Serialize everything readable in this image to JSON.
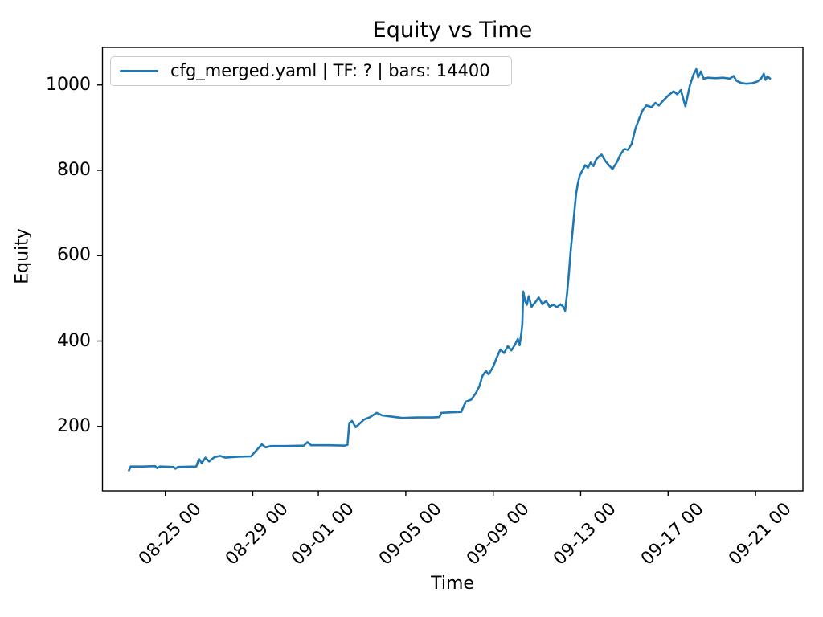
{
  "chart_data": {
    "type": "line",
    "title": "Equity vs Time",
    "xlabel": "Time",
    "ylabel": "Equity",
    "grid": false,
    "legend_position": "upper left",
    "line_color": "#1f77b4",
    "frame_color": "#000000",
    "x_tick_labels": [
      "08-25 00",
      "08-29 00",
      "09-01 00",
      "09-05 00",
      "09-09 00",
      "09-13 00",
      "09-17 00",
      "09-21 00"
    ],
    "y_ticks": [
      200,
      400,
      600,
      800,
      1000
    ],
    "xlim": [
      "08-22 03",
      "09-23 04"
    ],
    "ylim": [
      49,
      1088
    ],
    "series": [
      {
        "name": "cfg_merged.yaml | TF: ? | bars: 14400",
        "x": [
          "08-23 08",
          "08-23 10",
          "08-24 00",
          "08-24 13",
          "08-24 15",
          "08-24 18",
          "08-25 09",
          "08-25 11",
          "08-25 14",
          "08-26 10",
          "08-26 13",
          "08-26 16",
          "08-26 20",
          "08-27 00",
          "08-27 06",
          "08-27 12",
          "08-27 18",
          "08-28 08",
          "08-28 22",
          "08-29 10",
          "08-29 14",
          "08-29 20",
          "08-30 12",
          "08-31 08",
          "08-31 12",
          "08-31 16",
          "09-01 12",
          "09-02 05",
          "09-02 08",
          "09-02 10",
          "09-02 13",
          "09-02 17",
          "09-03 02",
          "09-03 09",
          "09-03 16",
          "09-03 22",
          "09-04 12",
          "09-04 20",
          "09-05 12",
          "09-06 06",
          "09-06 13",
          "09-06 15",
          "09-07 02",
          "09-07 13",
          "09-07 15",
          "09-07 18",
          "09-08 00",
          "09-08 05",
          "09-08 09",
          "09-08 12",
          "09-08 16",
          "09-08 19",
          "09-09 00",
          "09-09 04",
          "09-09 08",
          "09-09 12",
          "09-09 16",
          "09-09 20",
          "09-10 00",
          "09-10 03",
          "09-10 05",
          "09-10 07",
          "09-10 08",
          "09-10 09",
          "09-10 11",
          "09-10 13",
          "09-10 15",
          "09-10 18",
          "09-10 22",
          "09-11 02",
          "09-11 06",
          "09-11 10",
          "09-11 14",
          "09-11 18",
          "09-11 22",
          "09-12 02",
          "09-12 05",
          "09-12 07",
          "09-12 09",
          "09-12 11",
          "09-12 13",
          "09-12 15",
          "09-12 17",
          "09-12 19",
          "09-12 21",
          "09-12 23",
          "09-13 02",
          "09-13 05",
          "09-13 08",
          "09-13 11",
          "09-13 14",
          "09-13 17",
          "09-13 20",
          "09-13 23",
          "09-14 03",
          "09-14 07",
          "09-14 11",
          "09-14 16",
          "09-14 20",
          "09-15 00",
          "09-15 04",
          "09-15 08",
          "09-15 12",
          "09-15 16",
          "09-15 20",
          "09-16 00",
          "09-16 06",
          "09-16 10",
          "09-16 14",
          "09-16 18",
          "09-17 00",
          "09-17 06",
          "09-17 10",
          "09-17 14",
          "09-17 19",
          "09-18 00",
          "09-18 04",
          "09-18 07",
          "09-18 09",
          "09-18 12",
          "09-18 15",
          "09-18 20",
          "09-19 04",
          "09-19 12",
          "09-19 20",
          "09-20 00",
          "09-20 03",
          "09-20 08",
          "09-20 14",
          "09-20 20",
          "09-21 02",
          "09-21 06",
          "09-21 09",
          "09-21 11",
          "09-21 13",
          "09-21 16"
        ],
        "y": [
          97,
          106,
          106,
          107,
          102,
          106,
          105,
          101,
          105,
          106,
          124,
          114,
          127,
          118,
          128,
          131,
          127,
          129,
          130,
          158,
          151,
          154,
          154,
          155,
          163,
          156,
          156,
          155,
          157,
          208,
          213,
          198,
          216,
          222,
          232,
          226,
          222,
          220,
          221,
          221,
          222,
          232,
          233,
          234,
          245,
          258,
          263,
          278,
          295,
          318,
          330,
          322,
          340,
          362,
          380,
          372,
          388,
          378,
          392,
          405,
          390,
          420,
          440,
          516,
          494,
          485,
          505,
          480,
          490,
          502,
          486,
          494,
          480,
          485,
          479,
          486,
          480,
          471,
          510,
          555,
          610,
          655,
          700,
          745,
          770,
          788,
          800,
          812,
          806,
          818,
          810,
          825,
          832,
          837,
          822,
          812,
          803,
          820,
          838,
          850,
          848,
          862,
          897,
          920,
          940,
          952,
          948,
          958,
          952,
          962,
          975,
          985,
          978,
          988,
          950,
          1000,
          1025,
          1037,
          1018,
          1032,
          1015,
          1017,
          1016,
          1017,
          1015,
          1021,
          1010,
          1005,
          1003,
          1004,
          1008,
          1015,
          1026,
          1012,
          1020,
          1015
        ]
      }
    ]
  }
}
